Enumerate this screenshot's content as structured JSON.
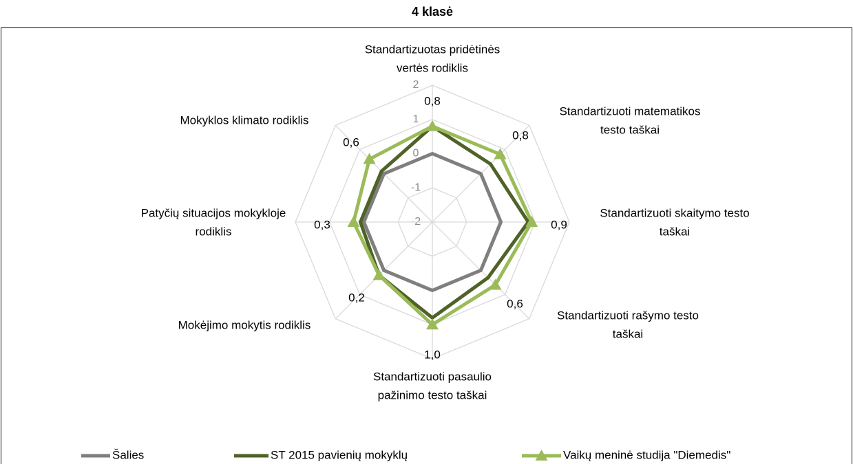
{
  "chart_data": {
    "type": "radar",
    "title": "4 klasė",
    "categories": [
      [
        "Standartizuotas pridėtinės",
        "vertės rodiklis"
      ],
      [
        "Standartizuoti matematikos",
        "testo taškai"
      ],
      [
        "Standartizuoti skaitymo testo",
        "taškai"
      ],
      [
        "Standartizuoti rašymo testo",
        "taškai"
      ],
      [
        "Standartizuoti pasaulio",
        "pažinimo testo taškai"
      ],
      [
        "Mokėjimo mokytis rodiklis"
      ],
      [
        "Patyčių situacijos mokykloje",
        "rodiklis"
      ],
      [
        "Mokyklos klimato rodiklis"
      ]
    ],
    "series": [
      {
        "name": "Šalies",
        "color": "#7f7f7f",
        "values": [
          0,
          0,
          0,
          0,
          0,
          0,
          0,
          0
        ]
      },
      {
        "name": "ST 2015 pavienių mokyklų",
        "color": "#4f6228",
        "values": [
          0.8,
          0.4,
          0.8,
          0.3,
          0.8,
          0.2,
          0.1,
          0.1
        ]
      },
      {
        "name": "Vaikų meninė studija \"Diemedis\"",
        "color": "#9bbb59",
        "marker": "triangle",
        "values": [
          0.8,
          0.8,
          0.9,
          0.6,
          1.0,
          0.2,
          0.3,
          0.6
        ],
        "value_labels": [
          "0,8",
          "0,8",
          "0,9",
          "0,6",
          "1,0",
          "0,2",
          "0,3",
          "0,6"
        ]
      }
    ],
    "ylim": [
      -2,
      2
    ],
    "yticks": [
      -2,
      -1,
      0,
      1,
      2
    ],
    "grid": true,
    "legend": "bottom"
  }
}
